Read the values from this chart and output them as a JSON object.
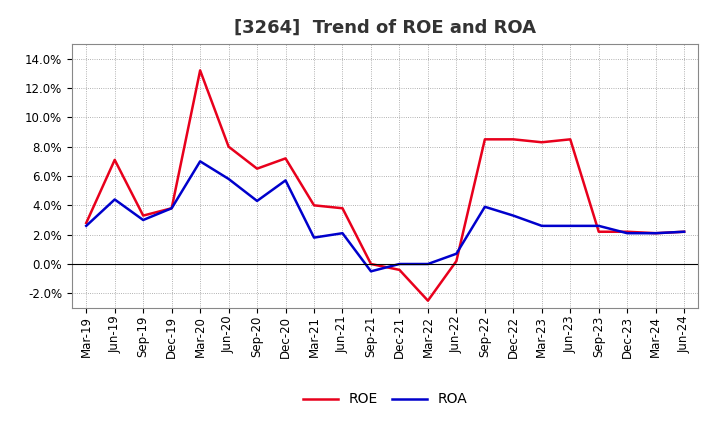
{
  "title": "[3264]  Trend of ROE and ROA",
  "x_labels": [
    "Mar-19",
    "Jun-19",
    "Sep-19",
    "Dec-19",
    "Mar-20",
    "Jun-20",
    "Sep-20",
    "Dec-20",
    "Mar-21",
    "Jun-21",
    "Sep-21",
    "Dec-21",
    "Mar-22",
    "Jun-22",
    "Sep-22",
    "Dec-22",
    "Mar-23",
    "Jun-23",
    "Sep-23",
    "Dec-23",
    "Mar-24",
    "Jun-24"
  ],
  "roe": [
    2.8,
    7.1,
    3.3,
    3.8,
    13.2,
    8.0,
    6.5,
    7.2,
    4.0,
    3.8,
    0.0,
    -0.4,
    -2.5,
    0.2,
    8.5,
    8.5,
    8.3,
    8.5,
    2.2,
    2.2,
    2.1,
    2.2
  ],
  "roa": [
    2.6,
    4.4,
    3.0,
    3.8,
    7.0,
    5.8,
    4.3,
    5.7,
    1.8,
    2.1,
    -0.5,
    0.0,
    0.0,
    0.7,
    3.9,
    3.3,
    2.6,
    2.6,
    2.6,
    2.1,
    2.1,
    2.2
  ],
  "roe_color": "#e8001c",
  "roa_color": "#0000cc",
  "ylim": [
    -3.0,
    15.0
  ],
  "yticks": [
    -2.0,
    0.0,
    2.0,
    4.0,
    6.0,
    8.0,
    10.0,
    12.0,
    14.0
  ],
  "background_color": "#ffffff",
  "plot_bg_color": "#ffffff",
  "grid_color": "#999999",
  "title_fontsize": 13,
  "tick_fontsize": 8.5,
  "legend_fontsize": 10,
  "line_width": 1.8
}
